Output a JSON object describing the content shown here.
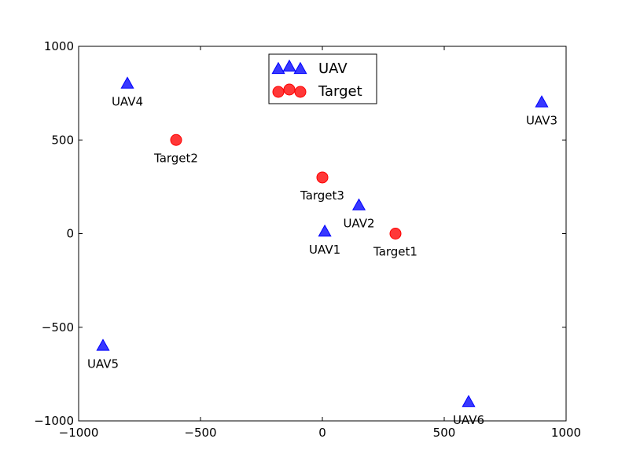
{
  "chart_data": {
    "type": "scatter",
    "title": "",
    "xlabel": "",
    "ylabel": "",
    "xlim": [
      -1000,
      1000
    ],
    "ylim": [
      -1000,
      1000
    ],
    "x_ticks": [
      -1000,
      -500,
      0,
      500,
      1000
    ],
    "y_ticks": [
      -1000,
      -500,
      0,
      500,
      1000
    ],
    "x_tick_labels": [
      "−1000",
      "−500",
      "0",
      "500",
      "1000"
    ],
    "y_tick_labels": [
      "−1000",
      "−500",
      "0",
      "500",
      "1000"
    ],
    "grid": false,
    "legend": {
      "placement": "upper-center"
    },
    "series": [
      {
        "name": "UAV",
        "marker": "triangle",
        "color": "#0000ff",
        "points": [
          {
            "label": "UAV1",
            "x": 10,
            "y": 10
          },
          {
            "label": "UAV2",
            "x": 150,
            "y": 150
          },
          {
            "label": "UAV3",
            "x": 900,
            "y": 700
          },
          {
            "label": "UAV4",
            "x": -800,
            "y": 800
          },
          {
            "label": "UAV5",
            "x": -900,
            "y": -600
          },
          {
            "label": "UAV6",
            "x": 600,
            "y": -900
          }
        ]
      },
      {
        "name": "Target",
        "marker": "circle",
        "color": "#ff0000",
        "points": [
          {
            "label": "Target1",
            "x": 300,
            "y": 0
          },
          {
            "label": "Target2",
            "x": -600,
            "y": 500
          },
          {
            "label": "Target3",
            "x": 0,
            "y": 300
          }
        ]
      }
    ]
  }
}
